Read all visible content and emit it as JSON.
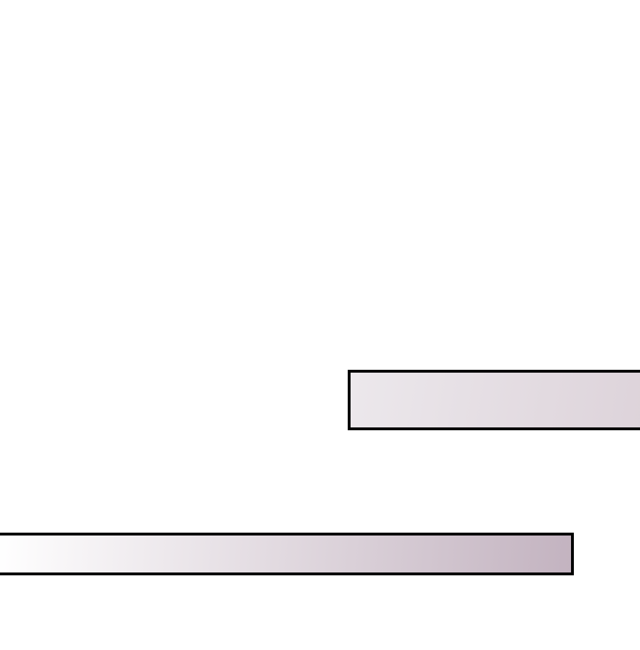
{
  "colors": {
    "background": "#ffffff",
    "border": "#000000",
    "top_bar_gradient": [
      "#ece8ec",
      "#ddd3da"
    ],
    "bottom_bar_gradient": [
      "#ffffff",
      "#c3b3c0"
    ]
  }
}
